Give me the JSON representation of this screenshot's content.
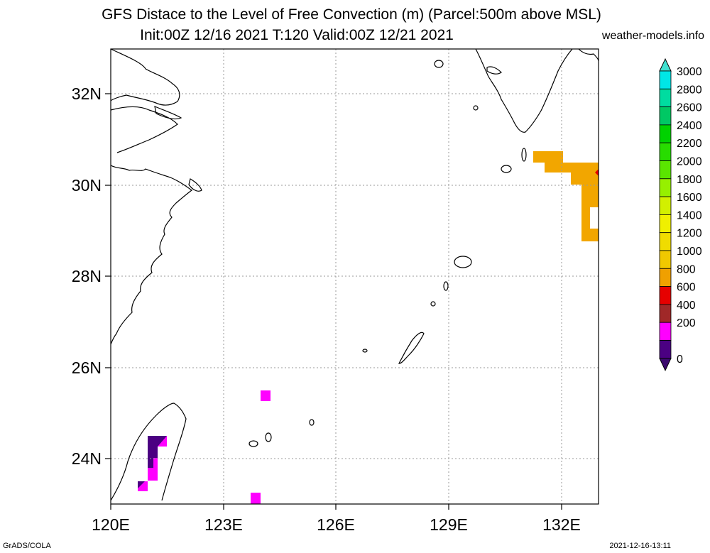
{
  "header": {
    "title_line1": "GFS Distace to the Level of Free Convection (m) (Parcel:500m above MSL)",
    "title_line2": "Init:00Z 12/16 2021 T:120 Valid:00Z 12/21 2021",
    "site": "weather-models.info"
  },
  "footer": {
    "left": "GrADS/COLA",
    "right": "2021-12-16-13:11"
  },
  "map": {
    "lon_labels": [
      "120E",
      "123E",
      "126E",
      "129E",
      "132E"
    ],
    "lat_labels": [
      "32N",
      "30N",
      "28N",
      "26N",
      "24N"
    ],
    "lon_range": [
      120,
      133
    ],
    "lat_range": [
      23,
      33
    ]
  },
  "colorbar": {
    "labels": [
      "3000",
      "2800",
      "2600",
      "2400",
      "2200",
      "2000",
      "1800",
      "1600",
      "1400",
      "1200",
      "1000",
      "800",
      "600",
      "400",
      "200",
      "0"
    ],
    "colors": [
      "#00e6e6",
      "#00dca0",
      "#00c864",
      "#00d200",
      "#28dc00",
      "#5ae600",
      "#96f000",
      "#d2f000",
      "#f0f000",
      "#f0dc00",
      "#f0c800",
      "#f0a000",
      "#e60000",
      "#a02828",
      "#ff00ff",
      "#4b0082"
    ],
    "top_arrow_color": "#40e0d0",
    "bottom_arrow_color": "#3c0a6e"
  }
}
